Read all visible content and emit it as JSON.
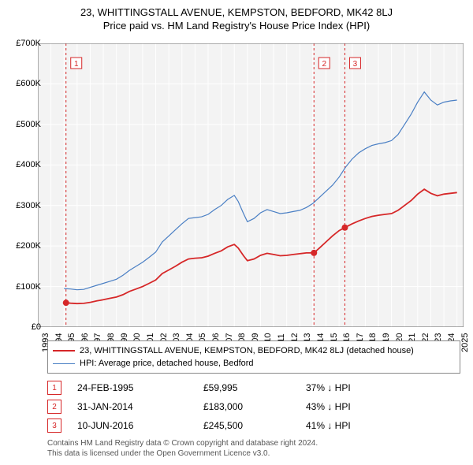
{
  "title": "23, WHITTINGSTALL AVENUE, KEMPSTON, BEDFORD, MK42 8LJ",
  "subtitle": "Price paid vs. HM Land Registry's House Price Index (HPI)",
  "chart": {
    "type": "line",
    "plot_bg": "#f3f3f3",
    "grid_color": "#ffffff",
    "axis_color": "#666666",
    "x_years": [
      1993,
      1994,
      1995,
      1996,
      1997,
      1998,
      1999,
      2000,
      2001,
      2002,
      2003,
      2004,
      2005,
      2006,
      2007,
      2008,
      2009,
      2010,
      2011,
      2012,
      2013,
      2014,
      2015,
      2016,
      2017,
      2018,
      2019,
      2020,
      2021,
      2022,
      2023,
      2024,
      2025
    ],
    "xlim": [
      1993,
      2025.5
    ],
    "ylim": [
      0,
      700000
    ],
    "ytick_step": 100000,
    "ytick_labels": [
      "£0",
      "£100K",
      "£200K",
      "£300K",
      "£400K",
      "£500K",
      "£600K",
      "£700K"
    ],
    "series": [
      {
        "name": "HPI: Average price, detached house, Bedford",
        "color": "#4a7fc4",
        "line_width": 1.2,
        "data": [
          [
            1995.0,
            95000
          ],
          [
            1995.5,
            94000
          ],
          [
            1996.0,
            92000
          ],
          [
            1996.5,
            93000
          ],
          [
            1997.0,
            98000
          ],
          [
            1997.5,
            103000
          ],
          [
            1998.0,
            108000
          ],
          [
            1998.5,
            113000
          ],
          [
            1999.0,
            118000
          ],
          [
            1999.5,
            128000
          ],
          [
            2000.0,
            140000
          ],
          [
            2000.5,
            150000
          ],
          [
            2001.0,
            160000
          ],
          [
            2001.5,
            172000
          ],
          [
            2002.0,
            185000
          ],
          [
            2002.5,
            210000
          ],
          [
            2003.0,
            225000
          ],
          [
            2003.5,
            240000
          ],
          [
            2004.0,
            255000
          ],
          [
            2004.5,
            268000
          ],
          [
            2005.0,
            270000
          ],
          [
            2005.5,
            272000
          ],
          [
            2006.0,
            278000
          ],
          [
            2006.5,
            290000
          ],
          [
            2007.0,
            300000
          ],
          [
            2007.5,
            315000
          ],
          [
            2008.0,
            325000
          ],
          [
            2008.3,
            310000
          ],
          [
            2008.7,
            280000
          ],
          [
            2009.0,
            260000
          ],
          [
            2009.5,
            268000
          ],
          [
            2010.0,
            282000
          ],
          [
            2010.5,
            290000
          ],
          [
            2011.0,
            285000
          ],
          [
            2011.5,
            280000
          ],
          [
            2012.0,
            282000
          ],
          [
            2012.5,
            285000
          ],
          [
            2013.0,
            288000
          ],
          [
            2013.5,
            295000
          ],
          [
            2014.0,
            305000
          ],
          [
            2014.5,
            320000
          ],
          [
            2015.0,
            335000
          ],
          [
            2015.5,
            350000
          ],
          [
            2016.0,
            370000
          ],
          [
            2016.5,
            395000
          ],
          [
            2017.0,
            415000
          ],
          [
            2017.5,
            430000
          ],
          [
            2018.0,
            440000
          ],
          [
            2018.5,
            448000
          ],
          [
            2019.0,
            452000
          ],
          [
            2019.5,
            455000
          ],
          [
            2020.0,
            460000
          ],
          [
            2020.5,
            475000
          ],
          [
            2021.0,
            500000
          ],
          [
            2021.5,
            525000
          ],
          [
            2022.0,
            555000
          ],
          [
            2022.5,
            580000
          ],
          [
            2023.0,
            560000
          ],
          [
            2023.5,
            548000
          ],
          [
            2024.0,
            555000
          ],
          [
            2024.5,
            558000
          ],
          [
            2025.0,
            560000
          ]
        ]
      },
      {
        "name": "23, WHITTINGSTALL AVENUE, KEMPSTON, BEDFORD, MK42 8LJ (detached house)",
        "color": "#d62728",
        "line_width": 1.8,
        "data": [
          [
            1995.15,
            59995
          ],
          [
            1995.5,
            59000
          ],
          [
            1996.0,
            58000
          ],
          [
            1996.5,
            58500
          ],
          [
            1997.0,
            61000
          ],
          [
            1997.5,
            64500
          ],
          [
            1998.0,
            67500
          ],
          [
            1998.5,
            71000
          ],
          [
            1999.0,
            74000
          ],
          [
            1999.5,
            80000
          ],
          [
            2000.0,
            88000
          ],
          [
            2000.5,
            94000
          ],
          [
            2001.0,
            100000
          ],
          [
            2001.5,
            108000
          ],
          [
            2002.0,
            116000
          ],
          [
            2002.5,
            132000
          ],
          [
            2003.0,
            141000
          ],
          [
            2003.5,
            150000
          ],
          [
            2004.0,
            160000
          ],
          [
            2004.5,
            168000
          ],
          [
            2005.0,
            170000
          ],
          [
            2005.5,
            171000
          ],
          [
            2006.0,
            175000
          ],
          [
            2006.5,
            182000
          ],
          [
            2007.0,
            188000
          ],
          [
            2007.5,
            198000
          ],
          [
            2008.0,
            204000
          ],
          [
            2008.3,
            195000
          ],
          [
            2008.7,
            176000
          ],
          [
            2009.0,
            164000
          ],
          [
            2009.5,
            168000
          ],
          [
            2010.0,
            177000
          ],
          [
            2010.5,
            182000
          ],
          [
            2011.0,
            179000
          ],
          [
            2011.5,
            176000
          ],
          [
            2012.0,
            177000
          ],
          [
            2012.5,
            179000
          ],
          [
            2013.0,
            181000
          ],
          [
            2013.5,
            183000
          ],
          [
            2014.08,
            183000
          ],
          [
            2014.5,
            195000
          ],
          [
            2015.0,
            210000
          ],
          [
            2015.5,
            225000
          ],
          [
            2016.0,
            238000
          ],
          [
            2016.44,
            245500
          ],
          [
            2017.0,
            255000
          ],
          [
            2017.5,
            262000
          ],
          [
            2018.0,
            268000
          ],
          [
            2018.5,
            273000
          ],
          [
            2019.0,
            276000
          ],
          [
            2019.5,
            278000
          ],
          [
            2020.0,
            280000
          ],
          [
            2020.5,
            288000
          ],
          [
            2021.0,
            300000
          ],
          [
            2021.5,
            312000
          ],
          [
            2022.0,
            328000
          ],
          [
            2022.5,
            340000
          ],
          [
            2023.0,
            330000
          ],
          [
            2023.5,
            324000
          ],
          [
            2024.0,
            328000
          ],
          [
            2024.5,
            330000
          ],
          [
            2025.0,
            332000
          ]
        ]
      }
    ],
    "sale_markers": [
      {
        "n": "1",
        "x": 1995.15,
        "y": 59995,
        "color": "#d62728"
      },
      {
        "n": "2",
        "x": 2014.08,
        "y": 183000,
        "color": "#d62728"
      },
      {
        "n": "3",
        "x": 2016.44,
        "y": 245500,
        "color": "#d62728"
      }
    ],
    "vlines": [
      {
        "x": 1995.15,
        "color": "#d62728",
        "dash": "3,3"
      },
      {
        "x": 2014.08,
        "color": "#d62728",
        "dash": "3,3"
      },
      {
        "x": 2016.44,
        "color": "#d62728",
        "dash": "3,3"
      }
    ],
    "vline_badges": [
      {
        "n": "1",
        "x": 1995.15,
        "color": "#d62728"
      },
      {
        "n": "2",
        "x": 2014.08,
        "color": "#d62728"
      },
      {
        "n": "3",
        "x": 2016.44,
        "color": "#d62728"
      }
    ]
  },
  "legend": [
    {
      "color": "#d62728",
      "width": 2,
      "label": "23, WHITTINGSTALL AVENUE, KEMPSTON, BEDFORD, MK42 8LJ (detached house)"
    },
    {
      "color": "#4a7fc4",
      "width": 1,
      "label": "HPI: Average price, detached house, Bedford"
    }
  ],
  "sales": [
    {
      "n": "1",
      "color": "#d62728",
      "date": "24-FEB-1995",
      "price": "£59,995",
      "diff": "37% ↓ HPI"
    },
    {
      "n": "2",
      "color": "#d62728",
      "date": "31-JAN-2014",
      "price": "£183,000",
      "diff": "43% ↓ HPI"
    },
    {
      "n": "3",
      "color": "#d62728",
      "date": "10-JUN-2016",
      "price": "£245,500",
      "diff": "41% ↓ HPI"
    }
  ],
  "footnote_l1": "Contains HM Land Registry data © Crown copyright and database right 2024.",
  "footnote_l2": "This data is licensed under the Open Government Licence v3.0."
}
